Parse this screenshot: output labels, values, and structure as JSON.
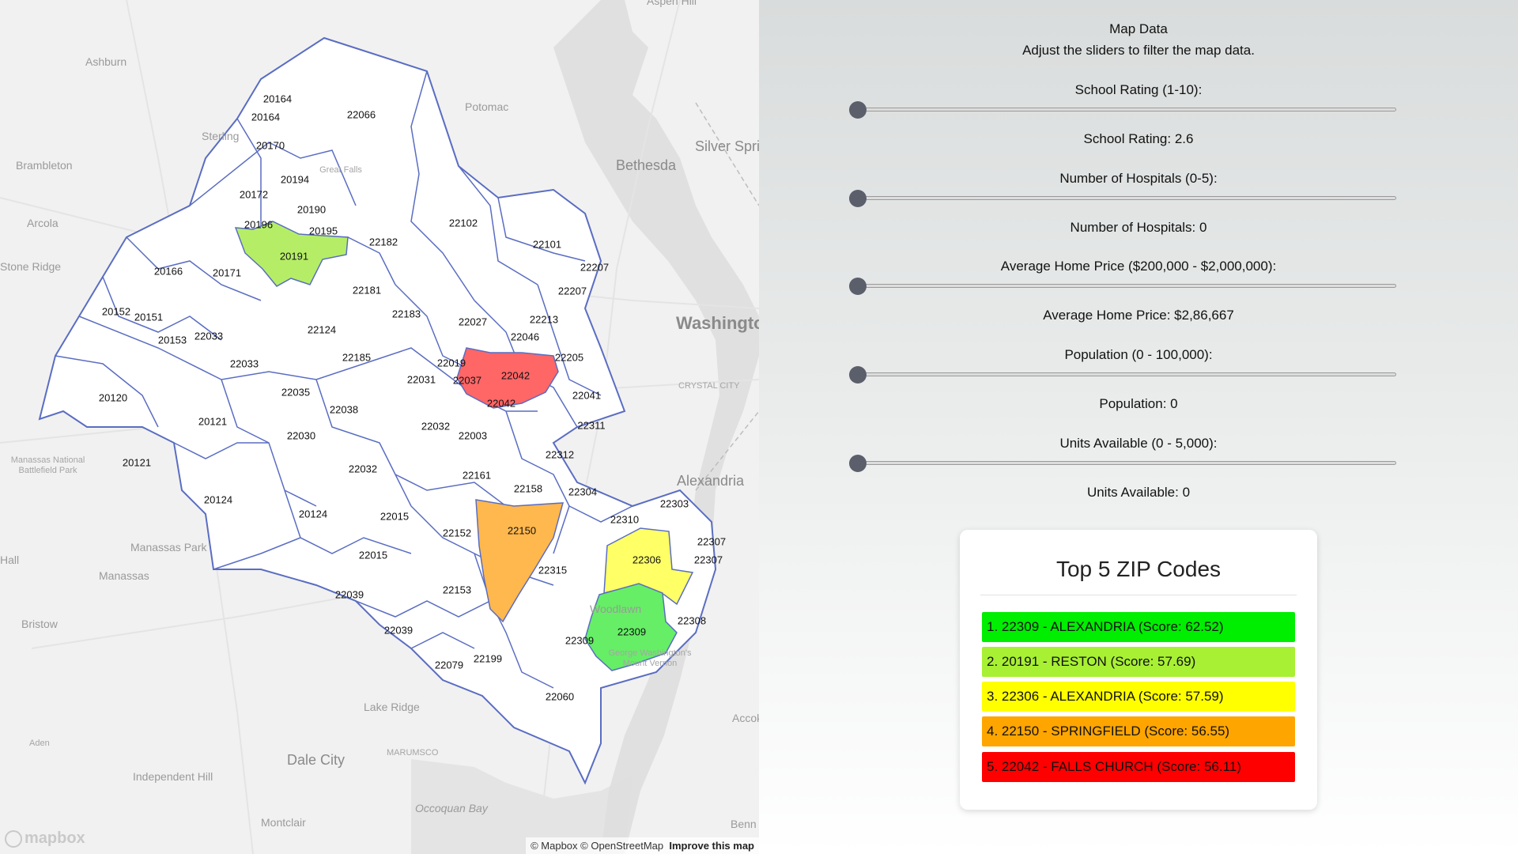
{
  "map": {
    "places": [
      {
        "text": "Ashburn"
      },
      {
        "text": "Sterling"
      },
      {
        "text": "Brambleton"
      },
      {
        "text": "Arcola"
      },
      {
        "text": "Stone Ridge"
      },
      {
        "text": "Potomac"
      },
      {
        "text": "Bethesda"
      },
      {
        "text": "Silver Spri"
      },
      {
        "text": "Great Falls"
      },
      {
        "text": "Washington"
      },
      {
        "text": "CRYSTAL CITY"
      },
      {
        "text": "Alexandria"
      },
      {
        "text": "Manassas National Battlefield Park"
      },
      {
        "text": "Manassas Park"
      },
      {
        "text": "Manassas"
      },
      {
        "text": "Hall"
      },
      {
        "text": "Bristow"
      },
      {
        "text": "Woodlawn"
      },
      {
        "text": "George Washington's Mount Vernon"
      },
      {
        "text": "Lake Ridge"
      },
      {
        "text": "Aden"
      },
      {
        "text": "Dale City"
      },
      {
        "text": "MARUMSCO"
      },
      {
        "text": "Independent Hill"
      },
      {
        "text": "Occoquan Bay"
      },
      {
        "text": "Montclair"
      },
      {
        "text": "Accok"
      },
      {
        "text": "Benn"
      },
      {
        "text": "Aspen Hill"
      }
    ],
    "zips": [
      "20164",
      "20164",
      "22066",
      "20170",
      "20194",
      "20172",
      "20190",
      "20196",
      "20195",
      "20191",
      "22182",
      "22102",
      "22101",
      "22207",
      "22207",
      "20166",
      "20171",
      "22181",
      "22183",
      "22027",
      "22213",
      "20152",
      "20151",
      "20153",
      "22033",
      "22124",
      "22046",
      "22205",
      "22033",
      "22185",
      "22019",
      "22031",
      "22037",
      "22042",
      "22042",
      "22041",
      "20120",
      "22035",
      "22038",
      "20121",
      "22032",
      "22311",
      "22030",
      "22003",
      "22312",
      "20121",
      "22161",
      "22032",
      "22158",
      "22304",
      "20124",
      "22303",
      "20124",
      "22015",
      "22310",
      "22150",
      "22152",
      "22307",
      "22307",
      "22306",
      "22015",
      "22315",
      "22039",
      "22153",
      "22308",
      "22039",
      "22309",
      "22309",
      "22199",
      "22079",
      "22060"
    ],
    "highlight_colors": {
      "22309": "#66ee66",
      "20191": "#b5ee66",
      "22306": "#ffff66",
      "22150": "#ffb84d",
      "22042": "#ff6666"
    },
    "logo_text": "mapbox",
    "attribution": {
      "copy": "© Mapbox © OpenStreetMap",
      "improve": "Improve this map"
    }
  },
  "controls": {
    "title": "Map Data",
    "subtitle": "Adjust the sliders to filter the map data.",
    "sliders": [
      {
        "label": "School Rating (1-10):",
        "value_text": "School Rating: 2.6",
        "fraction": 0.0
      },
      {
        "label": "Number of Hospitals (0-5):",
        "value_text": "Number of Hospitals: 0",
        "fraction": 0.0
      },
      {
        "label": "Average Home Price ($200,000 - $2,000,000):",
        "value_text": "Average Home Price: $2,86,667",
        "fraction": 0.0
      },
      {
        "label": "Population (0 - 100,000):",
        "value_text": "Population: 0",
        "fraction": 0.0
      },
      {
        "label": "Units Available (0 - 5,000):",
        "value_text": "Units Available: 0",
        "fraction": 0.0
      }
    ]
  },
  "top5": {
    "title": "Top 5 ZIP Codes",
    "items": [
      {
        "text": "1. 22309 - ALEXANDRIA (Score: 62.52)",
        "color": "#00ee00"
      },
      {
        "text": "2. 20191 - RESTON (Score: 57.69)",
        "color": "#a8f033"
      },
      {
        "text": "3. 22306 - ALEXANDRIA (Score: 57.59)",
        "color": "#ffff00"
      },
      {
        "text": "4. 22150 - SPRINGFIELD (Score: 56.55)",
        "color": "#ffa500"
      },
      {
        "text": "5. 22042 - FALLS CHURCH (Score: 56.11)",
        "color": "#ff0000"
      }
    ]
  }
}
